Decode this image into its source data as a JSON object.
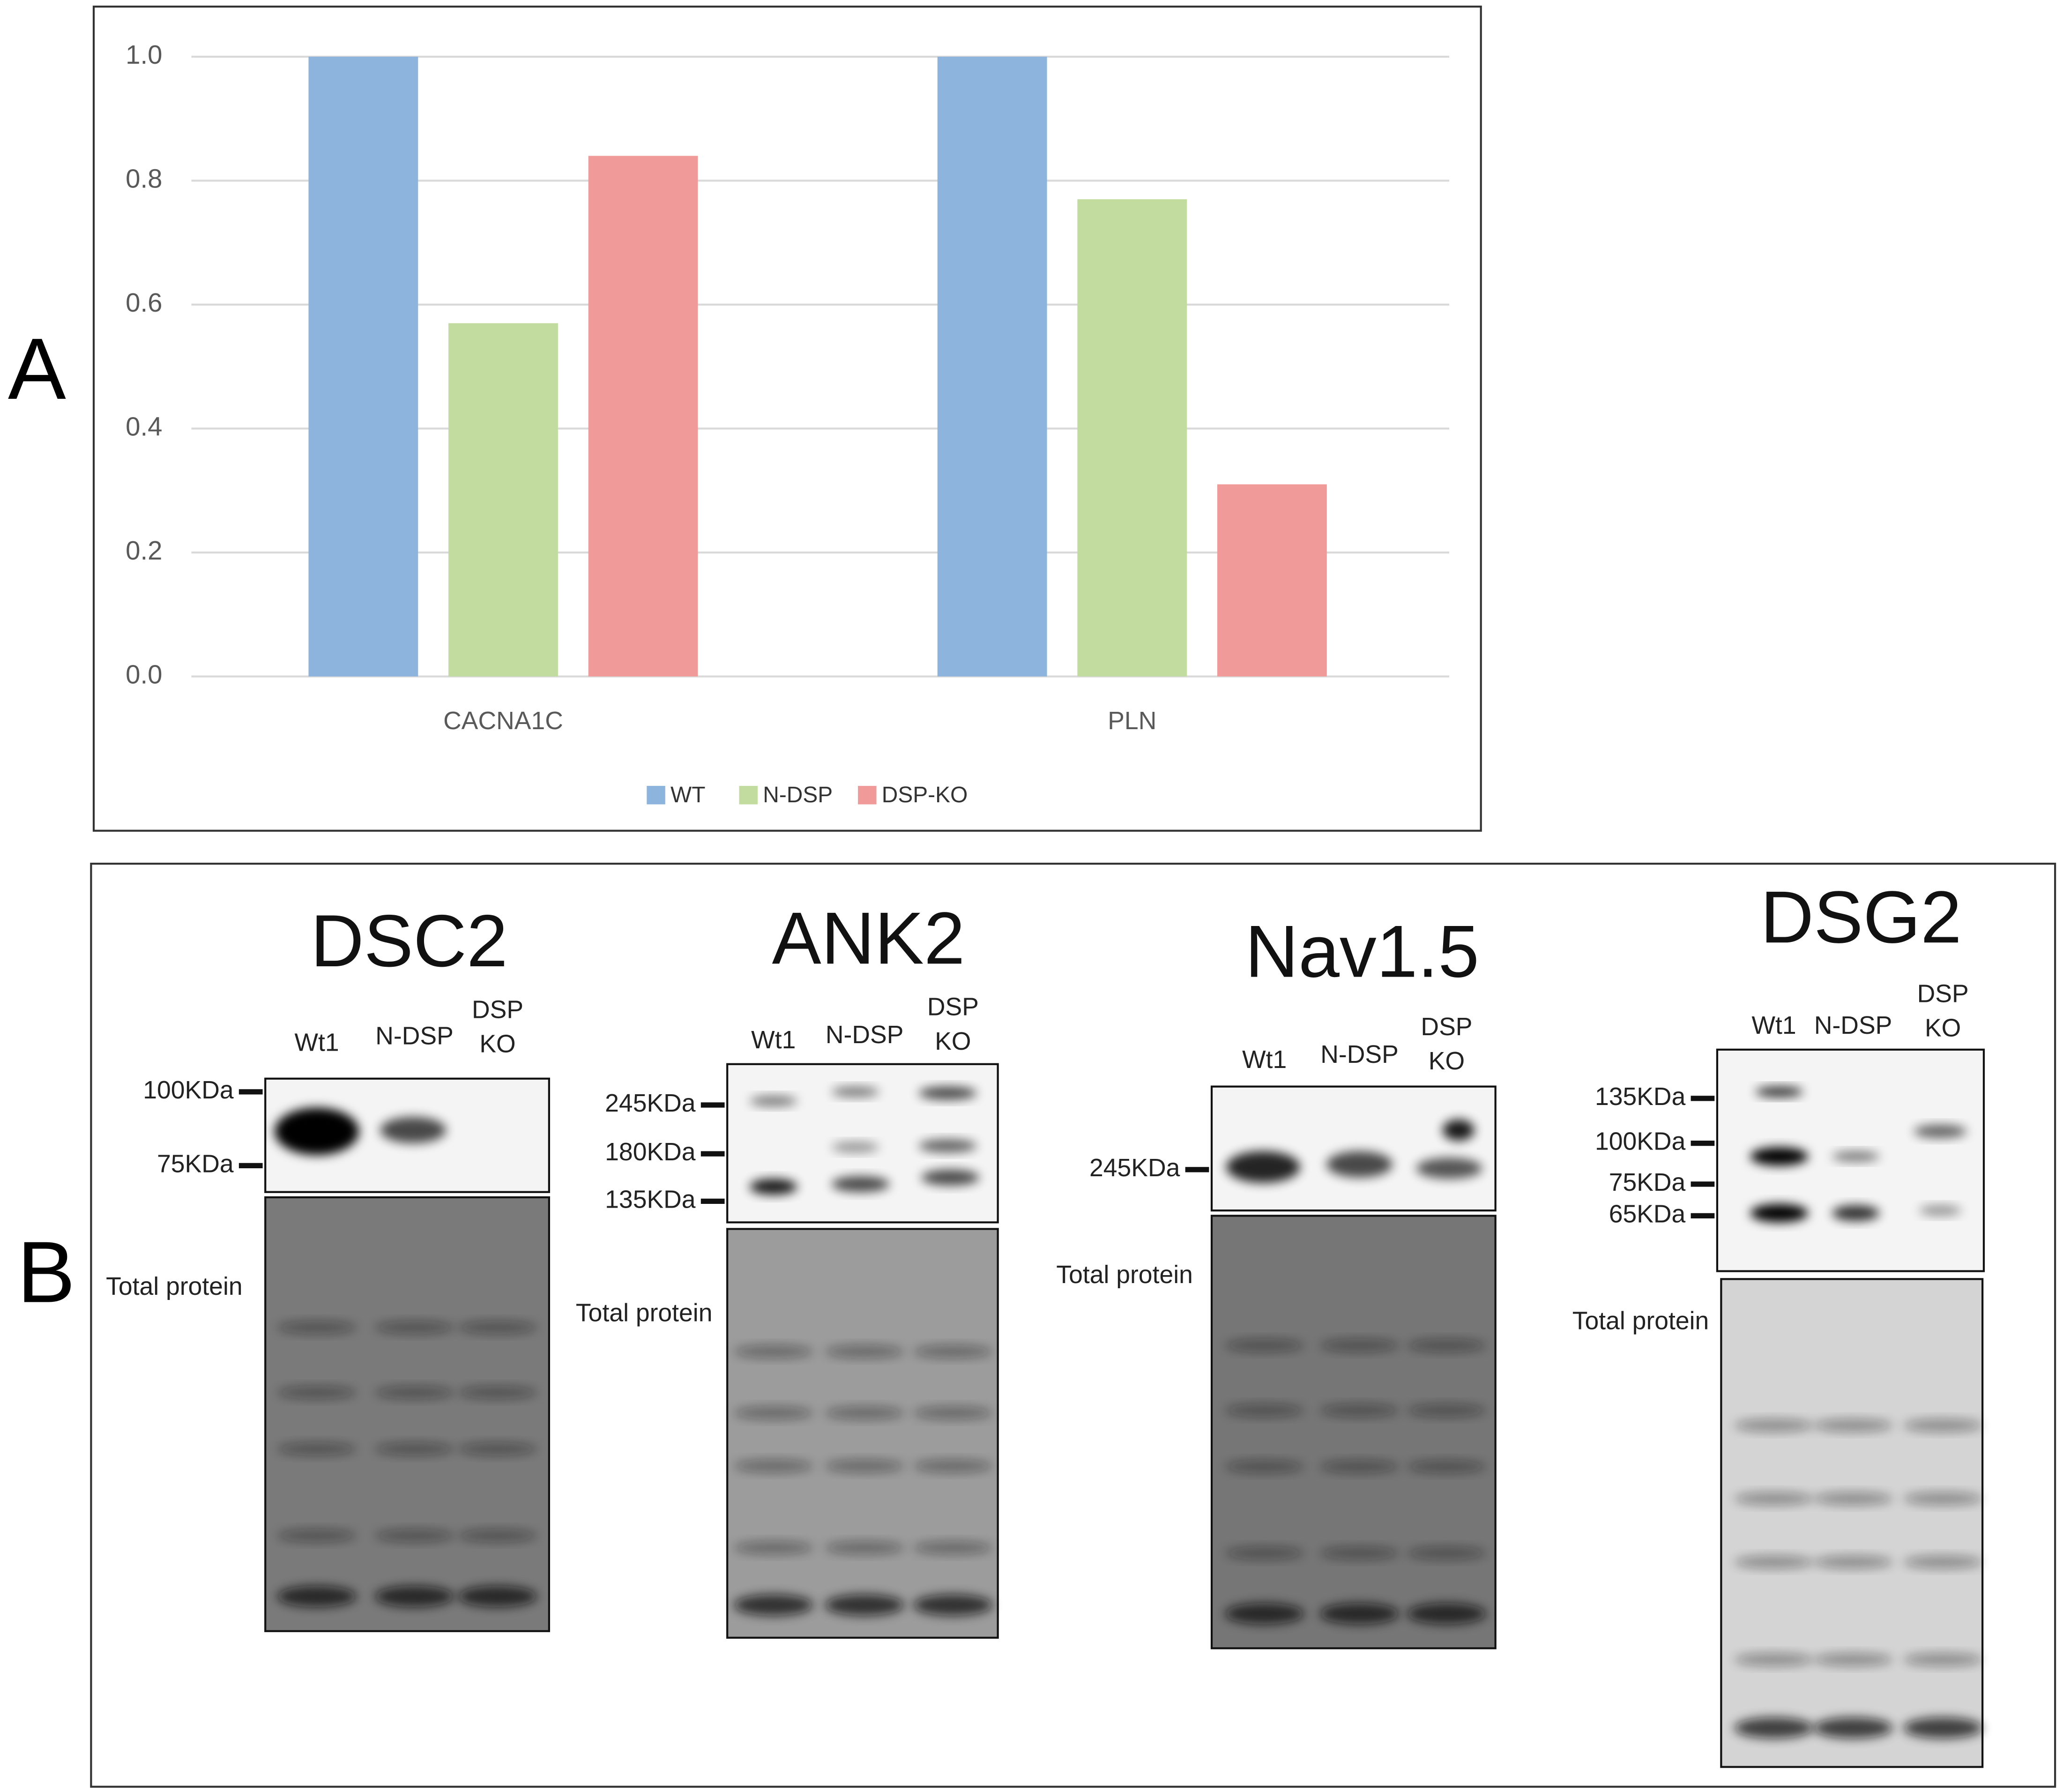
{
  "figure_labels": [
    "A",
    "B"
  ],
  "chart_data": {
    "type": "bar",
    "categories": [
      "CACNA1C",
      "PLN"
    ],
    "series": [
      {
        "name": "WT",
        "color": "#8db4dc",
        "values": [
          1.0,
          1.0
        ]
      },
      {
        "name": "N-DSP",
        "color": "#c2dc9f",
        "values": [
          0.57,
          0.77
        ]
      },
      {
        "name": "DSP-KO",
        "color": "#f09b9a",
        "values": [
          0.84,
          0.31
        ]
      }
    ],
    "ylim": [
      0,
      1
    ],
    "yticks": [
      {
        "value": 0,
        "label": "0.0"
      },
      0.2,
      0.4,
      0.6,
      0.8,
      {
        "value": 1,
        "label": "1.0"
      }
    ],
    "grid": true,
    "legend": "bottom"
  },
  "blots": [
    {
      "title": "DSC2",
      "lanes": [
        [
          "Wt1"
        ],
        [
          "N-DSP"
        ],
        [
          "DSP",
          "KO"
        ]
      ],
      "markers": [
        "100KDa",
        "75KDa"
      ],
      "total_protein": "Total protein"
    },
    {
      "title": "ANK2",
      "lanes": [
        [
          "Wt1"
        ],
        [
          "N-DSP"
        ],
        [
          "DSP",
          "KO"
        ]
      ],
      "markers": [
        "245KDa",
        "180KDa",
        "135KDa"
      ],
      "total_protein": "Total protein"
    },
    {
      "title": "Nav1.5",
      "lanes": [
        [
          "Wt1"
        ],
        [
          "N-DSP"
        ],
        [
          "DSP",
          "KO"
        ]
      ],
      "markers": [
        "245KDa"
      ],
      "total_protein": "Total protein"
    },
    {
      "title": "DSG2",
      "lanes": [
        [
          "Wt1"
        ],
        [
          "N-DSP"
        ],
        [
          "DSP",
          "KO"
        ]
      ],
      "markers": [
        "135KDa",
        "100KDa",
        "75KDa",
        "65KDa"
      ],
      "total_protein": "Total protein"
    }
  ]
}
